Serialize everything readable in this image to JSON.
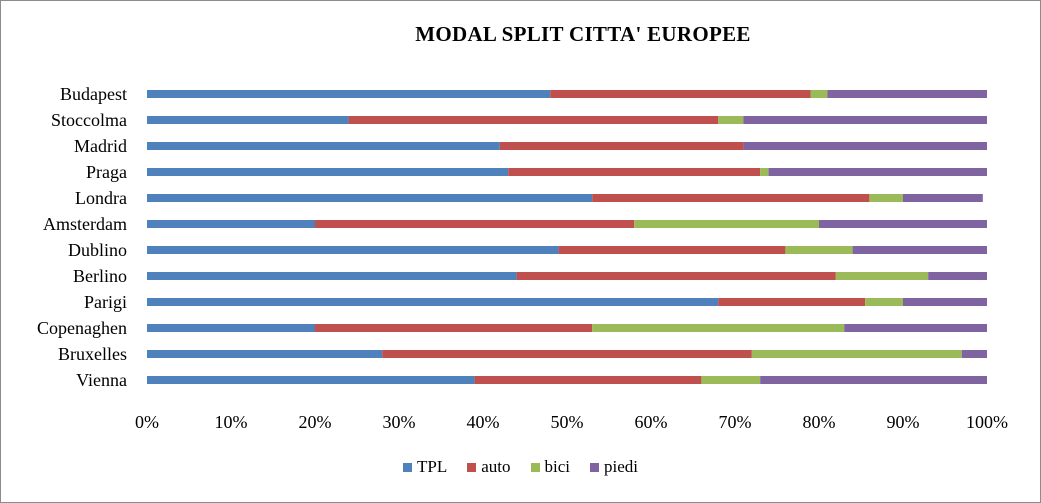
{
  "chart_data": {
    "type": "bar",
    "orientation": "horizontal",
    "stacked": "percent",
    "title": "MODAL SPLIT CITTA' EUROPEE",
    "categories": [
      "Budapest",
      "Stoccolma",
      "Madrid",
      "Praga",
      "Londra",
      "Amsterdam",
      "Dublino",
      "Berlino",
      "Parigi",
      "Copenaghen",
      "Bruxelles",
      "Vienna"
    ],
    "series": [
      {
        "name": "TPL",
        "color": "#4f81bd",
        "values": [
          48,
          24,
          42,
          43,
          53,
          20,
          49,
          44,
          68,
          20,
          28,
          39
        ]
      },
      {
        "name": "auto",
        "color": "#c0504d",
        "values": [
          31,
          44,
          29,
          30,
          33,
          38,
          27,
          38,
          17.5,
          33,
          44,
          27
        ]
      },
      {
        "name": "bici",
        "color": "#9bbb59",
        "values": [
          2,
          3,
          0,
          1,
          4,
          22,
          8,
          11,
          4.5,
          30,
          25,
          7
        ]
      },
      {
        "name": "piedi",
        "color": "#8064a2",
        "values": [
          19,
          29,
          29,
          26,
          9.5,
          20,
          16,
          7,
          10,
          17,
          3,
          27
        ]
      }
    ],
    "xlim": [
      0,
      100
    ],
    "xticks": [
      "0%",
      "10%",
      "20%",
      "30%",
      "40%",
      "50%",
      "60%",
      "70%",
      "80%",
      "90%",
      "100%"
    ],
    "grid": false,
    "legend": "bottom"
  }
}
